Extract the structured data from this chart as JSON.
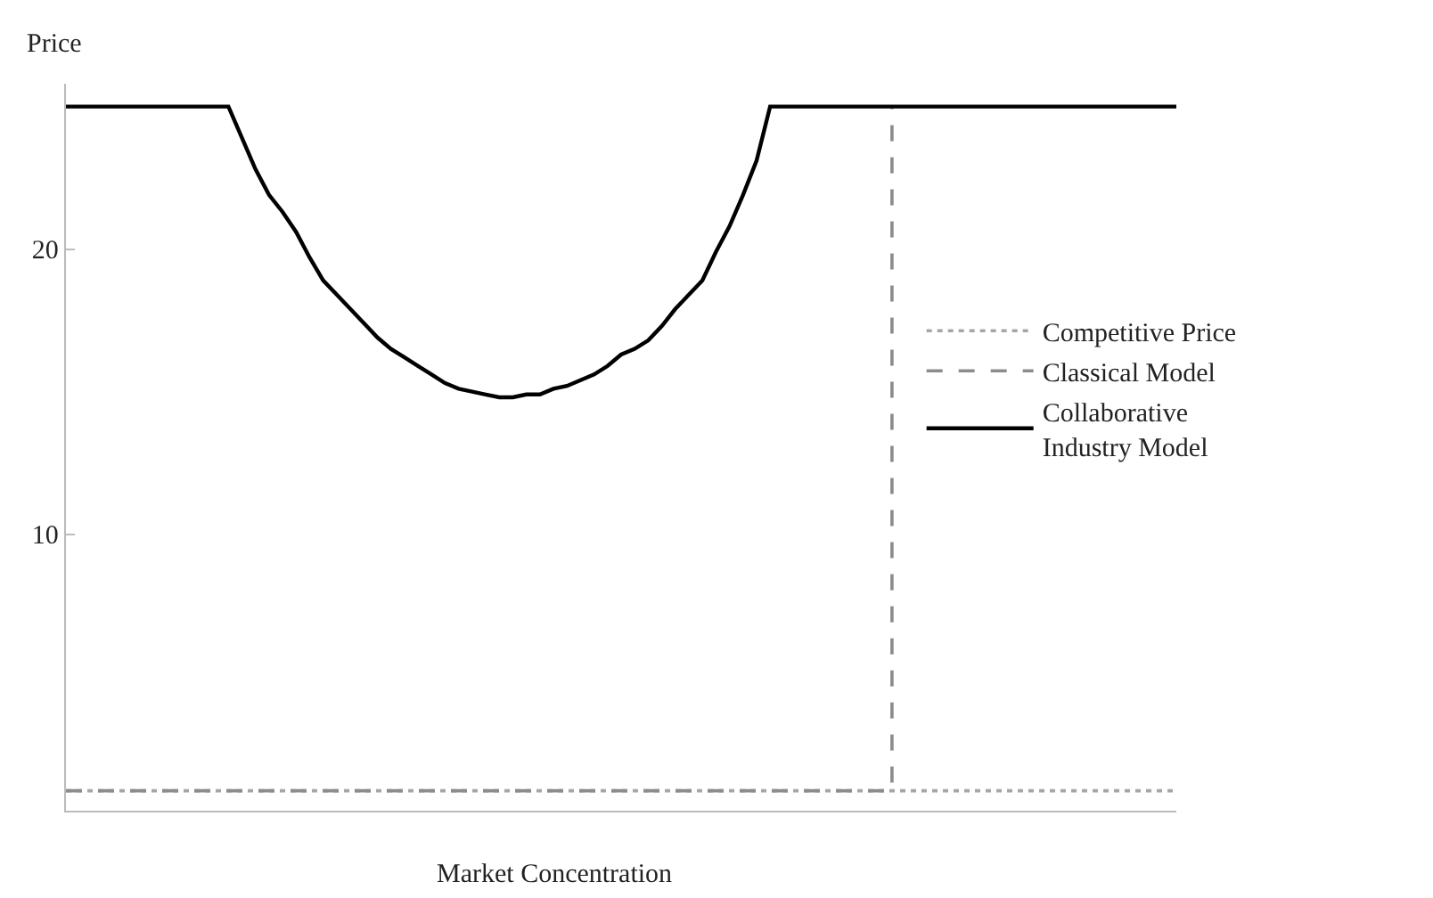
{
  "chart_data": {
    "type": "line",
    "xlabel": "Market Concentration",
    "ylabel": "Price",
    "categories": [
      null,
      null,
      null,
      null,
      null,
      null,
      null,
      null,
      null,
      null,
      null,
      null,
      null,
      null,
      null,
      null,
      null,
      null,
      null,
      null,
      null,
      null,
      null,
      null,
      null,
      null,
      null,
      null,
      null,
      null,
      null,
      null,
      null,
      null,
      null,
      null,
      null,
      null,
      null,
      null,
      null,
      null,
      null,
      null,
      null,
      null,
      null,
      null,
      null,
      null,
      null,
      null,
      null,
      null,
      null,
      null,
      null,
      null,
      null,
      null,
      null,
      null,
      null,
      null,
      null,
      null,
      null,
      null,
      null,
      null,
      null,
      null,
      null,
      null,
      null,
      null,
      null,
      null,
      null,
      null,
      null,
      null,
      null
    ],
    "series": [
      {
        "name": "Competitive Price",
        "color": "#a6a6a6",
        "line_style": "dotted",
        "values": [
          1,
          1,
          1,
          1,
          1,
          1,
          1,
          1,
          1,
          1,
          1,
          1,
          1,
          1,
          1,
          1,
          1,
          1,
          1,
          1,
          1,
          1,
          1,
          1,
          1,
          1,
          1,
          1,
          1,
          1,
          1,
          1,
          1,
          1,
          1,
          1,
          1,
          1,
          1,
          1,
          1,
          1,
          1,
          1,
          1,
          1,
          1,
          1,
          1,
          1,
          1,
          1,
          1,
          1,
          1,
          1,
          1,
          1,
          1,
          1,
          1,
          1,
          1,
          1,
          1,
          1,
          1,
          1,
          1,
          1,
          1,
          1,
          1,
          1,
          1,
          1,
          1,
          1,
          1,
          1,
          1,
          1,
          1
        ]
      },
      {
        "name": "Classical Model",
        "type": "step",
        "color": "#8c8c8c",
        "line_style": "dashed",
        "values": [
          1,
          1,
          1,
          1,
          1,
          1,
          1,
          1,
          1,
          1,
          1,
          1,
          1,
          1,
          1,
          1,
          1,
          1,
          1,
          1,
          1,
          1,
          1,
          1,
          1,
          1,
          1,
          1,
          1,
          1,
          1,
          1,
          1,
          1,
          1,
          1,
          1,
          1,
          1,
          1,
          1,
          1,
          1,
          1,
          1,
          1,
          1,
          1,
          1,
          1,
          1,
          1,
          1,
          1,
          1,
          1,
          1,
          1,
          1,
          1,
          1,
          25,
          null,
          null,
          null,
          null,
          null,
          null,
          null,
          null,
          null,
          null,
          null,
          null,
          null,
          null,
          null,
          null,
          null,
          null,
          null,
          null,
          null
        ]
      },
      {
        "name": "Collaborative Industry Model",
        "color": "#000000",
        "line_style": "solid",
        "values": [
          25,
          25,
          25,
          25,
          25,
          25,
          25,
          25,
          25,
          25,
          25,
          25,
          25,
          23.9,
          22.8,
          21.9,
          21.3,
          20.6,
          19.7,
          18.9,
          18.4,
          17.9,
          17.4,
          16.9,
          16.5,
          16.2,
          15.9,
          15.6,
          15.3,
          15.1,
          15.0,
          14.9,
          14.8,
          14.8,
          14.9,
          14.9,
          15.1,
          15.2,
          15.4,
          15.6,
          15.9,
          16.3,
          16.5,
          16.8,
          17.3,
          17.9,
          18.4,
          18.9,
          19.9,
          20.8,
          21.9,
          23.1,
          25,
          25,
          25,
          25,
          25,
          25,
          25,
          25,
          25,
          25,
          25,
          25,
          25,
          25,
          25,
          25,
          25,
          25,
          25,
          25,
          25,
          25,
          25,
          25,
          25,
          25,
          25,
          25,
          25,
          25,
          25
        ]
      }
    ],
    "ylim": [
      0.3,
      25.8
    ],
    "yticks": [
      10,
      20
    ],
    "tick_labels": "y",
    "legend": "right"
  }
}
